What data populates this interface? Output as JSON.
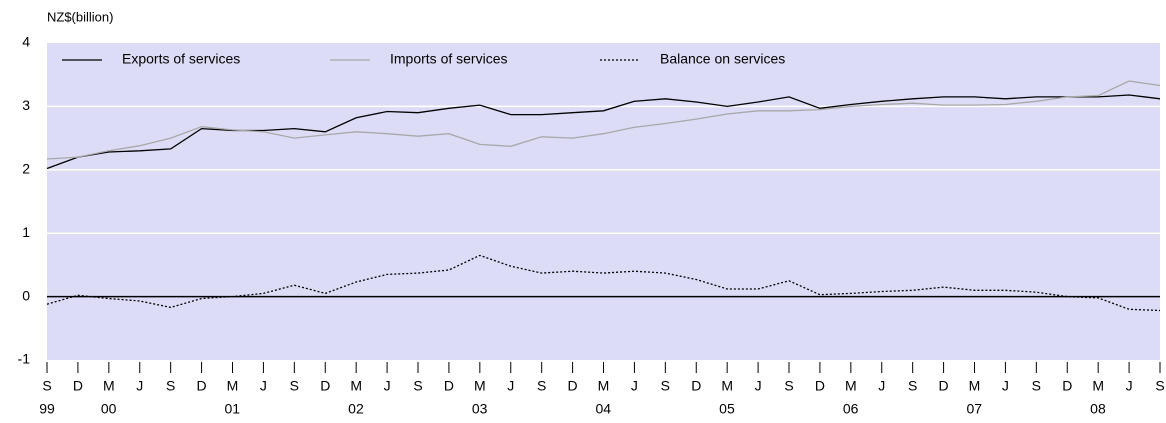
{
  "chart_data": {
    "type": "line",
    "y_axis_label": "NZ$(billion)",
    "categories": [
      "S",
      "D",
      "M",
      "J",
      "S",
      "D",
      "M",
      "J",
      "S",
      "D",
      "M",
      "J",
      "S",
      "D",
      "M",
      "J",
      "S",
      "D",
      "M",
      "J",
      "S",
      "D",
      "M",
      "J",
      "S",
      "D",
      "M",
      "J",
      "S",
      "D",
      "M",
      "J",
      "S",
      "D",
      "M",
      "J",
      "S"
    ],
    "year_labels": [
      "99",
      null,
      "00",
      null,
      null,
      null,
      "01",
      null,
      null,
      null,
      "02",
      null,
      null,
      null,
      "03",
      null,
      null,
      null,
      "04",
      null,
      null,
      null,
      "05",
      null,
      null,
      null,
      "06",
      null,
      null,
      null,
      "07",
      null,
      null,
      null,
      "08",
      null,
      null
    ],
    "series": [
      {
        "name": "Exports of services",
        "color": "#000000",
        "dash": false,
        "values": [
          2.02,
          2.2,
          2.28,
          2.3,
          2.33,
          2.65,
          2.62,
          2.62,
          2.65,
          2.6,
          2.82,
          2.92,
          2.9,
          2.97,
          3.02,
          2.87,
          2.87,
          2.9,
          2.93,
          3.08,
          3.12,
          3.07,
          3.0,
          3.07,
          3.15,
          2.97,
          3.03,
          3.08,
          3.12,
          3.15,
          3.15,
          3.12,
          3.15,
          3.15,
          3.15,
          3.18,
          3.12
        ]
      },
      {
        "name": "Imports of services",
        "color": "#a8a8a8",
        "dash": false,
        "values": [
          2.17,
          2.2,
          2.3,
          2.38,
          2.5,
          2.68,
          2.63,
          2.6,
          2.5,
          2.55,
          2.6,
          2.57,
          2.53,
          2.57,
          2.4,
          2.37,
          2.52,
          2.5,
          2.57,
          2.67,
          2.73,
          2.8,
          2.88,
          2.93,
          2.93,
          2.95,
          3.0,
          3.03,
          3.05,
          3.02,
          3.02,
          3.03,
          3.08,
          3.15,
          3.17,
          3.4,
          3.33
        ]
      },
      {
        "name": "Balance on services",
        "color": "#000000",
        "dash": true,
        "values": [
          -0.12,
          0.02,
          -0.03,
          -0.07,
          -0.17,
          -0.03,
          0.0,
          0.05,
          0.18,
          0.05,
          0.23,
          0.35,
          0.37,
          0.42,
          0.65,
          0.48,
          0.37,
          0.4,
          0.37,
          0.4,
          0.37,
          0.27,
          0.12,
          0.12,
          0.25,
          0.03,
          0.05,
          0.08,
          0.1,
          0.15,
          0.1,
          0.1,
          0.07,
          0.0,
          -0.02,
          -0.2,
          -0.22
        ]
      }
    ],
    "ylim": [
      -1,
      4
    ],
    "yticks": [
      -1,
      0,
      1,
      2,
      3,
      4
    ],
    "grid": true,
    "legend": "top"
  }
}
